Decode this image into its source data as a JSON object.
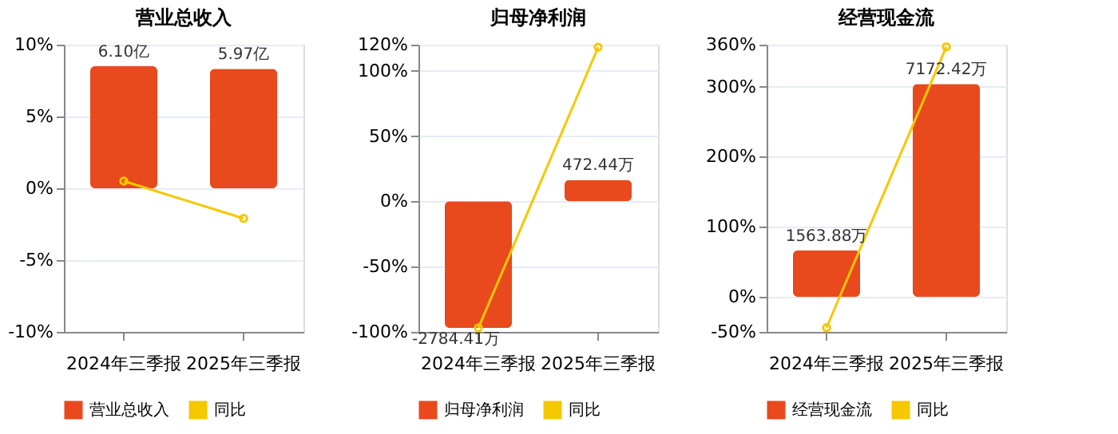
{
  "chart_data": [
    {
      "type": "bar",
      "title": "营业总收入",
      "categories": [
        "2024年三季报",
        "2025年三季报"
      ],
      "series": [
        {
          "name": "营业总收入",
          "axis": "y2",
          "color": "#e8491d",
          "values": [
            6.1,
            5.97
          ],
          "value_labels": [
            "6.10亿",
            "5.97亿"
          ]
        },
        {
          "name": "同比",
          "type": "line",
          "color": "#f5c800",
          "values": [
            0.5,
            -2.1
          ]
        }
      ],
      "ylim": [
        -10,
        10
      ],
      "yticks": [
        {
          "value": -10,
          "label": "-10%"
        },
        {
          "value": -5,
          "label": "-5%"
        },
        {
          "value": 0,
          "label": "0%"
        },
        {
          "value": 5,
          "label": "5%"
        },
        {
          "value": 10,
          "label": "10%"
        }
      ],
      "y2lim": [
        -7.18,
        7.18
      ],
      "grid": "y",
      "legend": "bottom",
      "marker": "circle"
    },
    {
      "type": "bar",
      "title": "归母净利润",
      "categories": [
        "2024年三季报",
        "2025年三季报"
      ],
      "series": [
        {
          "name": "归母净利润",
          "axis": "y2",
          "color": "#e8491d",
          "values": [
            -2784.41,
            472.44
          ],
          "value_labels": [
            "-2784.41万",
            "472.44万"
          ]
        },
        {
          "name": "同比",
          "type": "line",
          "color": "#f5c800",
          "values": [
            -97,
            118
          ]
        }
      ],
      "ylim": [
        -100,
        120
      ],
      "yticks": [
        {
          "value": -100,
          "label": "-100%"
        },
        {
          "value": -50,
          "label": "-50%"
        },
        {
          "value": 0,
          "label": "0%"
        },
        {
          "value": 50,
          "label": "50%"
        },
        {
          "value": 100,
          "label": "100%"
        },
        {
          "value": 120,
          "label": "120%"
        }
      ],
      "y2lim": [
        -2870,
        3444
      ],
      "grid": "y",
      "legend": "bottom",
      "marker": "circle"
    },
    {
      "type": "bar",
      "title": "经营现金流",
      "categories": [
        "2024年三季报",
        "2025年三季报"
      ],
      "series": [
        {
          "name": "经营现金流",
          "axis": "y2",
          "color": "#e8491d",
          "values": [
            1563.88,
            7172.42
          ],
          "value_labels": [
            "1563.88万",
            "7172.42万"
          ]
        },
        {
          "name": "同比",
          "type": "line",
          "color": "#f5c800",
          "values": [
            -44,
            357
          ]
        }
      ],
      "ylim": [
        -50,
        360
      ],
      "yticks": [
        {
          "value": -50,
          "label": "-50%"
        },
        {
          "value": 0,
          "label": "0%"
        },
        {
          "value": 100,
          "label": "100%"
        },
        {
          "value": 200,
          "label": "200%"
        },
        {
          "value": 300,
          "label": "300%"
        },
        {
          "value": 360,
          "label": "360%"
        }
      ],
      "y2lim": [
        -1180,
        8496
      ],
      "grid": "y",
      "legend": "bottom",
      "marker": "circle"
    }
  ]
}
